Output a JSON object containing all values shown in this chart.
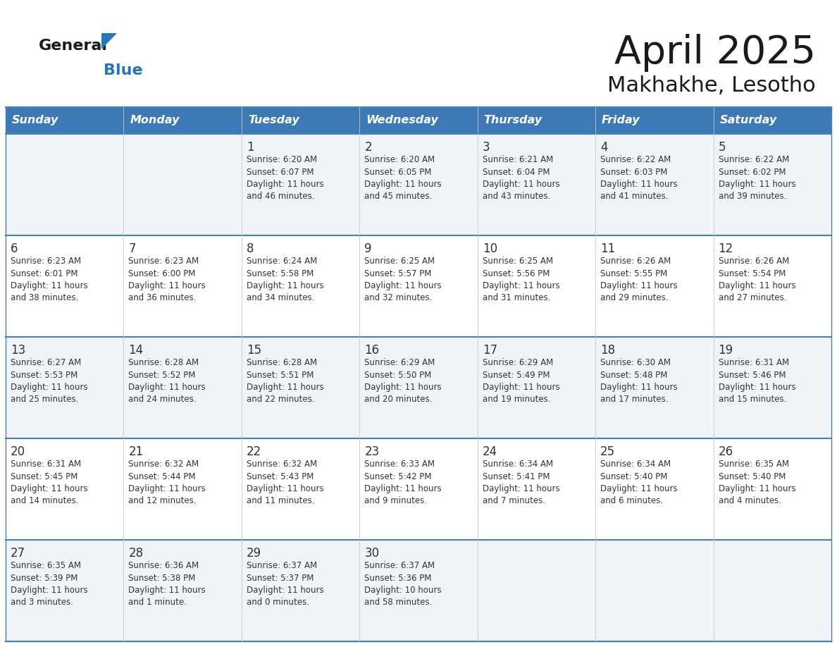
{
  "title": "April 2025",
  "subtitle": "Makhakhe, Lesotho",
  "days_of_week": [
    "Sunday",
    "Monday",
    "Tuesday",
    "Wednesday",
    "Thursday",
    "Friday",
    "Saturday"
  ],
  "header_bg": "#3d7ab5",
  "header_text": "#ffffff",
  "row_bg_1": "#f0f4f8",
  "row_bg_2": "#ffffff",
  "cell_border_color": "#4a7fb5",
  "inner_border_color": "#cccccc",
  "day_number_color": "#333333",
  "info_text_color": "#333333",
  "title_color": "#1a1a1a",
  "subtitle_color": "#1a1a1a",
  "logo_general_color": "#1a1a1a",
  "logo_blue_color": "#2a74b8",
  "logo_triangle_color": "#2a74b8",
  "weeks": [
    {
      "days": [
        {
          "date": "",
          "sunrise": "",
          "sunset": "",
          "daylight": ""
        },
        {
          "date": "",
          "sunrise": "",
          "sunset": "",
          "daylight": ""
        },
        {
          "date": "1",
          "sunrise": "Sunrise: 6:20 AM",
          "sunset": "Sunset: 6:07 PM",
          "daylight": "Daylight: 11 hours\nand 46 minutes."
        },
        {
          "date": "2",
          "sunrise": "Sunrise: 6:20 AM",
          "sunset": "Sunset: 6:05 PM",
          "daylight": "Daylight: 11 hours\nand 45 minutes."
        },
        {
          "date": "3",
          "sunrise": "Sunrise: 6:21 AM",
          "sunset": "Sunset: 6:04 PM",
          "daylight": "Daylight: 11 hours\nand 43 minutes."
        },
        {
          "date": "4",
          "sunrise": "Sunrise: 6:22 AM",
          "sunset": "Sunset: 6:03 PM",
          "daylight": "Daylight: 11 hours\nand 41 minutes."
        },
        {
          "date": "5",
          "sunrise": "Sunrise: 6:22 AM",
          "sunset": "Sunset: 6:02 PM",
          "daylight": "Daylight: 11 hours\nand 39 minutes."
        }
      ]
    },
    {
      "days": [
        {
          "date": "6",
          "sunrise": "Sunrise: 6:23 AM",
          "sunset": "Sunset: 6:01 PM",
          "daylight": "Daylight: 11 hours\nand 38 minutes."
        },
        {
          "date": "7",
          "sunrise": "Sunrise: 6:23 AM",
          "sunset": "Sunset: 6:00 PM",
          "daylight": "Daylight: 11 hours\nand 36 minutes."
        },
        {
          "date": "8",
          "sunrise": "Sunrise: 6:24 AM",
          "sunset": "Sunset: 5:58 PM",
          "daylight": "Daylight: 11 hours\nand 34 minutes."
        },
        {
          "date": "9",
          "sunrise": "Sunrise: 6:25 AM",
          "sunset": "Sunset: 5:57 PM",
          "daylight": "Daylight: 11 hours\nand 32 minutes."
        },
        {
          "date": "10",
          "sunrise": "Sunrise: 6:25 AM",
          "sunset": "Sunset: 5:56 PM",
          "daylight": "Daylight: 11 hours\nand 31 minutes."
        },
        {
          "date": "11",
          "sunrise": "Sunrise: 6:26 AM",
          "sunset": "Sunset: 5:55 PM",
          "daylight": "Daylight: 11 hours\nand 29 minutes."
        },
        {
          "date": "12",
          "sunrise": "Sunrise: 6:26 AM",
          "sunset": "Sunset: 5:54 PM",
          "daylight": "Daylight: 11 hours\nand 27 minutes."
        }
      ]
    },
    {
      "days": [
        {
          "date": "13",
          "sunrise": "Sunrise: 6:27 AM",
          "sunset": "Sunset: 5:53 PM",
          "daylight": "Daylight: 11 hours\nand 25 minutes."
        },
        {
          "date": "14",
          "sunrise": "Sunrise: 6:28 AM",
          "sunset": "Sunset: 5:52 PM",
          "daylight": "Daylight: 11 hours\nand 24 minutes."
        },
        {
          "date": "15",
          "sunrise": "Sunrise: 6:28 AM",
          "sunset": "Sunset: 5:51 PM",
          "daylight": "Daylight: 11 hours\nand 22 minutes."
        },
        {
          "date": "16",
          "sunrise": "Sunrise: 6:29 AM",
          "sunset": "Sunset: 5:50 PM",
          "daylight": "Daylight: 11 hours\nand 20 minutes."
        },
        {
          "date": "17",
          "sunrise": "Sunrise: 6:29 AM",
          "sunset": "Sunset: 5:49 PM",
          "daylight": "Daylight: 11 hours\nand 19 minutes."
        },
        {
          "date": "18",
          "sunrise": "Sunrise: 6:30 AM",
          "sunset": "Sunset: 5:48 PM",
          "daylight": "Daylight: 11 hours\nand 17 minutes."
        },
        {
          "date": "19",
          "sunrise": "Sunrise: 6:31 AM",
          "sunset": "Sunset: 5:46 PM",
          "daylight": "Daylight: 11 hours\nand 15 minutes."
        }
      ]
    },
    {
      "days": [
        {
          "date": "20",
          "sunrise": "Sunrise: 6:31 AM",
          "sunset": "Sunset: 5:45 PM",
          "daylight": "Daylight: 11 hours\nand 14 minutes."
        },
        {
          "date": "21",
          "sunrise": "Sunrise: 6:32 AM",
          "sunset": "Sunset: 5:44 PM",
          "daylight": "Daylight: 11 hours\nand 12 minutes."
        },
        {
          "date": "22",
          "sunrise": "Sunrise: 6:32 AM",
          "sunset": "Sunset: 5:43 PM",
          "daylight": "Daylight: 11 hours\nand 11 minutes."
        },
        {
          "date": "23",
          "sunrise": "Sunrise: 6:33 AM",
          "sunset": "Sunset: 5:42 PM",
          "daylight": "Daylight: 11 hours\nand 9 minutes."
        },
        {
          "date": "24",
          "sunrise": "Sunrise: 6:34 AM",
          "sunset": "Sunset: 5:41 PM",
          "daylight": "Daylight: 11 hours\nand 7 minutes."
        },
        {
          "date": "25",
          "sunrise": "Sunrise: 6:34 AM",
          "sunset": "Sunset: 5:40 PM",
          "daylight": "Daylight: 11 hours\nand 6 minutes."
        },
        {
          "date": "26",
          "sunrise": "Sunrise: 6:35 AM",
          "sunset": "Sunset: 5:40 PM",
          "daylight": "Daylight: 11 hours\nand 4 minutes."
        }
      ]
    },
    {
      "days": [
        {
          "date": "27",
          "sunrise": "Sunrise: 6:35 AM",
          "sunset": "Sunset: 5:39 PM",
          "daylight": "Daylight: 11 hours\nand 3 minutes."
        },
        {
          "date": "28",
          "sunrise": "Sunrise: 6:36 AM",
          "sunset": "Sunset: 5:38 PM",
          "daylight": "Daylight: 11 hours\nand 1 minute."
        },
        {
          "date": "29",
          "sunrise": "Sunrise: 6:37 AM",
          "sunset": "Sunset: 5:37 PM",
          "daylight": "Daylight: 11 hours\nand 0 minutes."
        },
        {
          "date": "30",
          "sunrise": "Sunrise: 6:37 AM",
          "sunset": "Sunset: 5:36 PM",
          "daylight": "Daylight: 10 hours\nand 58 minutes."
        },
        {
          "date": "",
          "sunrise": "",
          "sunset": "",
          "daylight": ""
        },
        {
          "date": "",
          "sunrise": "",
          "sunset": "",
          "daylight": ""
        },
        {
          "date": "",
          "sunrise": "",
          "sunset": "",
          "daylight": ""
        }
      ]
    }
  ]
}
